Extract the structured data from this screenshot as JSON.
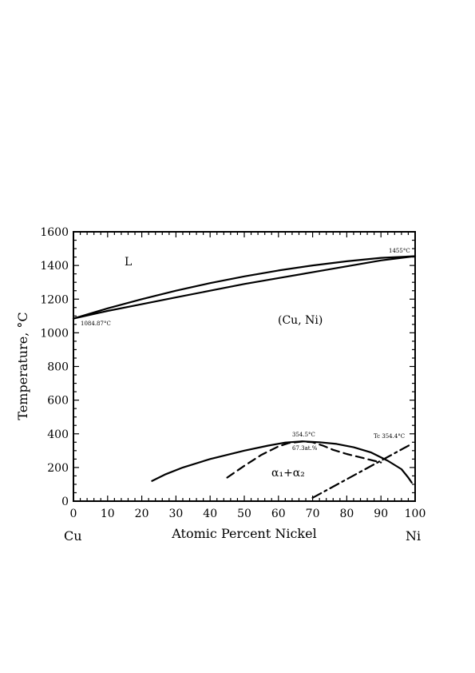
{
  "chart_data": {
    "type": "line",
    "title": "",
    "xlabel": "Atomic Percent Nickel",
    "ylabel": "Temperature, °C",
    "xlim": [
      0,
      100
    ],
    "ylim": [
      0,
      1600
    ],
    "x_ticks": [
      "0",
      "10",
      "20",
      "30",
      "40",
      "50",
      "60",
      "70",
      "80",
      "90",
      "100"
    ],
    "y_ticks": [
      "0",
      "200",
      "400",
      "600",
      "800",
      "1000",
      "1200",
      "1400",
      "1600"
    ],
    "element_left": "Cu",
    "element_right": "Ni",
    "grid": false,
    "series": [
      {
        "style": "solid",
        "x": [
          0,
          10,
          20,
          30,
          40,
          50,
          60,
          70,
          80,
          90,
          100
        ],
        "y": [
          1085,
          1145,
          1200,
          1250,
          1295,
          1335,
          1370,
          1400,
          1425,
          1445,
          1455
        ]
      },
      {
        "style": "solid",
        "x": [
          0,
          10,
          20,
          30,
          40,
          50,
          60,
          70,
          80,
          90,
          100
        ],
        "y": [
          1085,
          1130,
          1170,
          1210,
          1250,
          1290,
          1325,
          1360,
          1395,
          1430,
          1455
        ]
      },
      {
        "style": "solid",
        "x": [
          23,
          27,
          32,
          40,
          50,
          57,
          62,
          67,
          72,
          77,
          82,
          87,
          92,
          96,
          98,
          99
        ],
        "y": [
          120,
          160,
          200,
          250,
          300,
          330,
          348,
          355,
          350,
          340,
          320,
          290,
          240,
          190,
          140,
          110
        ]
      },
      {
        "style": "dashed",
        "x": [
          45,
          50,
          55,
          60,
          63,
          67,
          70,
          73,
          76,
          80,
          84,
          88,
          90
        ],
        "y": [
          140,
          210,
          275,
          325,
          345,
          354,
          350,
          330,
          305,
          280,
          260,
          240,
          230
        ]
      },
      {
        "style": "dashdot",
        "x": [
          70,
          99
        ],
        "y": [
          20,
          340
        ]
      }
    ],
    "annotations": {
      "liquid": "L",
      "solid_solution": "(Cu, Ni)",
      "two_phase": "α₁+α₂",
      "cu_melting": "1084.87°C",
      "ni_melting": "1455°C",
      "critical_temp": "354.5°C",
      "critical_comp": "67.3at.%",
      "curie_temp": "Tc 354.4°C"
    }
  }
}
